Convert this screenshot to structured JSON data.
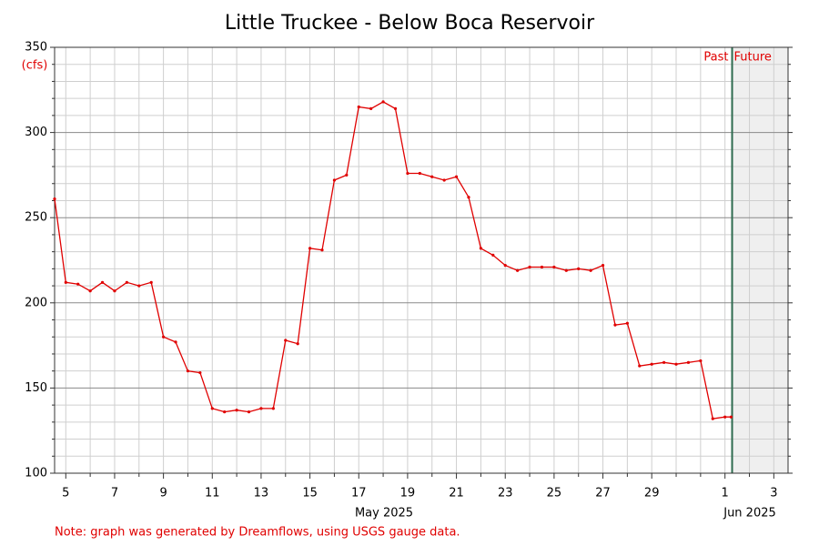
{
  "chart_data": {
    "type": "line",
    "title": "Little Truckee - Below Boca Reservoir",
    "y_label": "(cfs)",
    "note": "Note: graph was generated by Dreamflows, using USGS gauge data.",
    "past_label": "Past",
    "future_label": "Future",
    "now": "2025-06-01T07:00",
    "x_groups": [
      "May 2025",
      "Jun 2025"
    ],
    "xlim": [
      "2025-05-04T13:00",
      "2025-06-03T14:00"
    ],
    "xticks": [
      {
        "value": "2025-05-05",
        "label": "5"
      },
      {
        "value": "2025-05-07",
        "label": "7"
      },
      {
        "value": "2025-05-09",
        "label": "9"
      },
      {
        "value": "2025-05-11",
        "label": "11"
      },
      {
        "value": "2025-05-13",
        "label": "13"
      },
      {
        "value": "2025-05-15",
        "label": "15"
      },
      {
        "value": "2025-05-17",
        "label": "17"
      },
      {
        "value": "2025-05-19",
        "label": "19"
      },
      {
        "value": "2025-05-21",
        "label": "21"
      },
      {
        "value": "2025-05-23",
        "label": "23"
      },
      {
        "value": "2025-05-25",
        "label": "25"
      },
      {
        "value": "2025-05-27",
        "label": "27"
      },
      {
        "value": "2025-05-29",
        "label": "29"
      },
      {
        "value": "2025-06-01",
        "label": "1"
      },
      {
        "value": "2025-06-03",
        "label": "3"
      }
    ],
    "x_minor_ticks": [
      "2025-05-06",
      "2025-05-08",
      "2025-05-10",
      "2025-05-12",
      "2025-05-14",
      "2025-05-16",
      "2025-05-18",
      "2025-05-20",
      "2025-05-22",
      "2025-05-24",
      "2025-05-26",
      "2025-05-28",
      "2025-05-30",
      "2025-05-31",
      "2025-06-02"
    ],
    "ylim": [
      100,
      350
    ],
    "yticks": [
      100,
      150,
      200,
      250,
      300,
      350
    ],
    "y_minor_ticks": [
      110,
      120,
      130,
      140,
      160,
      170,
      180,
      190,
      210,
      220,
      230,
      240,
      260,
      270,
      280,
      290,
      310,
      320,
      330,
      340
    ],
    "grid": true,
    "color": "#e00000",
    "x": [
      "2025-05-04T13:00",
      "2025-05-05T00:00",
      "2025-05-05T12:00",
      "2025-05-06T00:00",
      "2025-05-06T12:00",
      "2025-05-07T00:00",
      "2025-05-07T12:00",
      "2025-05-08T00:00",
      "2025-05-08T12:00",
      "2025-05-09T00:00",
      "2025-05-09T12:00",
      "2025-05-10T00:00",
      "2025-05-10T12:00",
      "2025-05-11T00:00",
      "2025-05-11T12:00",
      "2025-05-12T00:00",
      "2025-05-12T12:00",
      "2025-05-13T00:00",
      "2025-05-13T12:00",
      "2025-05-14T00:00",
      "2025-05-14T12:00",
      "2025-05-15T00:00",
      "2025-05-15T12:00",
      "2025-05-16T00:00",
      "2025-05-16T12:00",
      "2025-05-17T00:00",
      "2025-05-17T12:00",
      "2025-05-18T00:00",
      "2025-05-18T12:00",
      "2025-05-19T00:00",
      "2025-05-19T12:00",
      "2025-05-20T00:00",
      "2025-05-20T12:00",
      "2025-05-21T00:00",
      "2025-05-21T12:00",
      "2025-05-22T00:00",
      "2025-05-22T12:00",
      "2025-05-23T00:00",
      "2025-05-23T12:00",
      "2025-05-24T00:00",
      "2025-05-24T12:00",
      "2025-05-25T00:00",
      "2025-05-25T12:00",
      "2025-05-26T00:00",
      "2025-05-26T12:00",
      "2025-05-27T00:00",
      "2025-05-27T12:00",
      "2025-05-28T00:00",
      "2025-05-28T12:00",
      "2025-05-29T00:00",
      "2025-05-29T12:00",
      "2025-05-30T00:00",
      "2025-05-30T12:00",
      "2025-05-31T00:00",
      "2025-05-31T12:00",
      "2025-06-01T00:00",
      "2025-06-01T06:00"
    ],
    "values": [
      261,
      212,
      211,
      207,
      212,
      207,
      212,
      210,
      212,
      180,
      177,
      160,
      159,
      138,
      136,
      137,
      136,
      138,
      138,
      178,
      176,
      232,
      231,
      272,
      275,
      315,
      314,
      318,
      314,
      276,
      276,
      274,
      272,
      274,
      262,
      232,
      228,
      222,
      219,
      221,
      221,
      221,
      219,
      220,
      219,
      222,
      187,
      188,
      163,
      164,
      165,
      164,
      165,
      166,
      132,
      133,
      133
    ]
  }
}
